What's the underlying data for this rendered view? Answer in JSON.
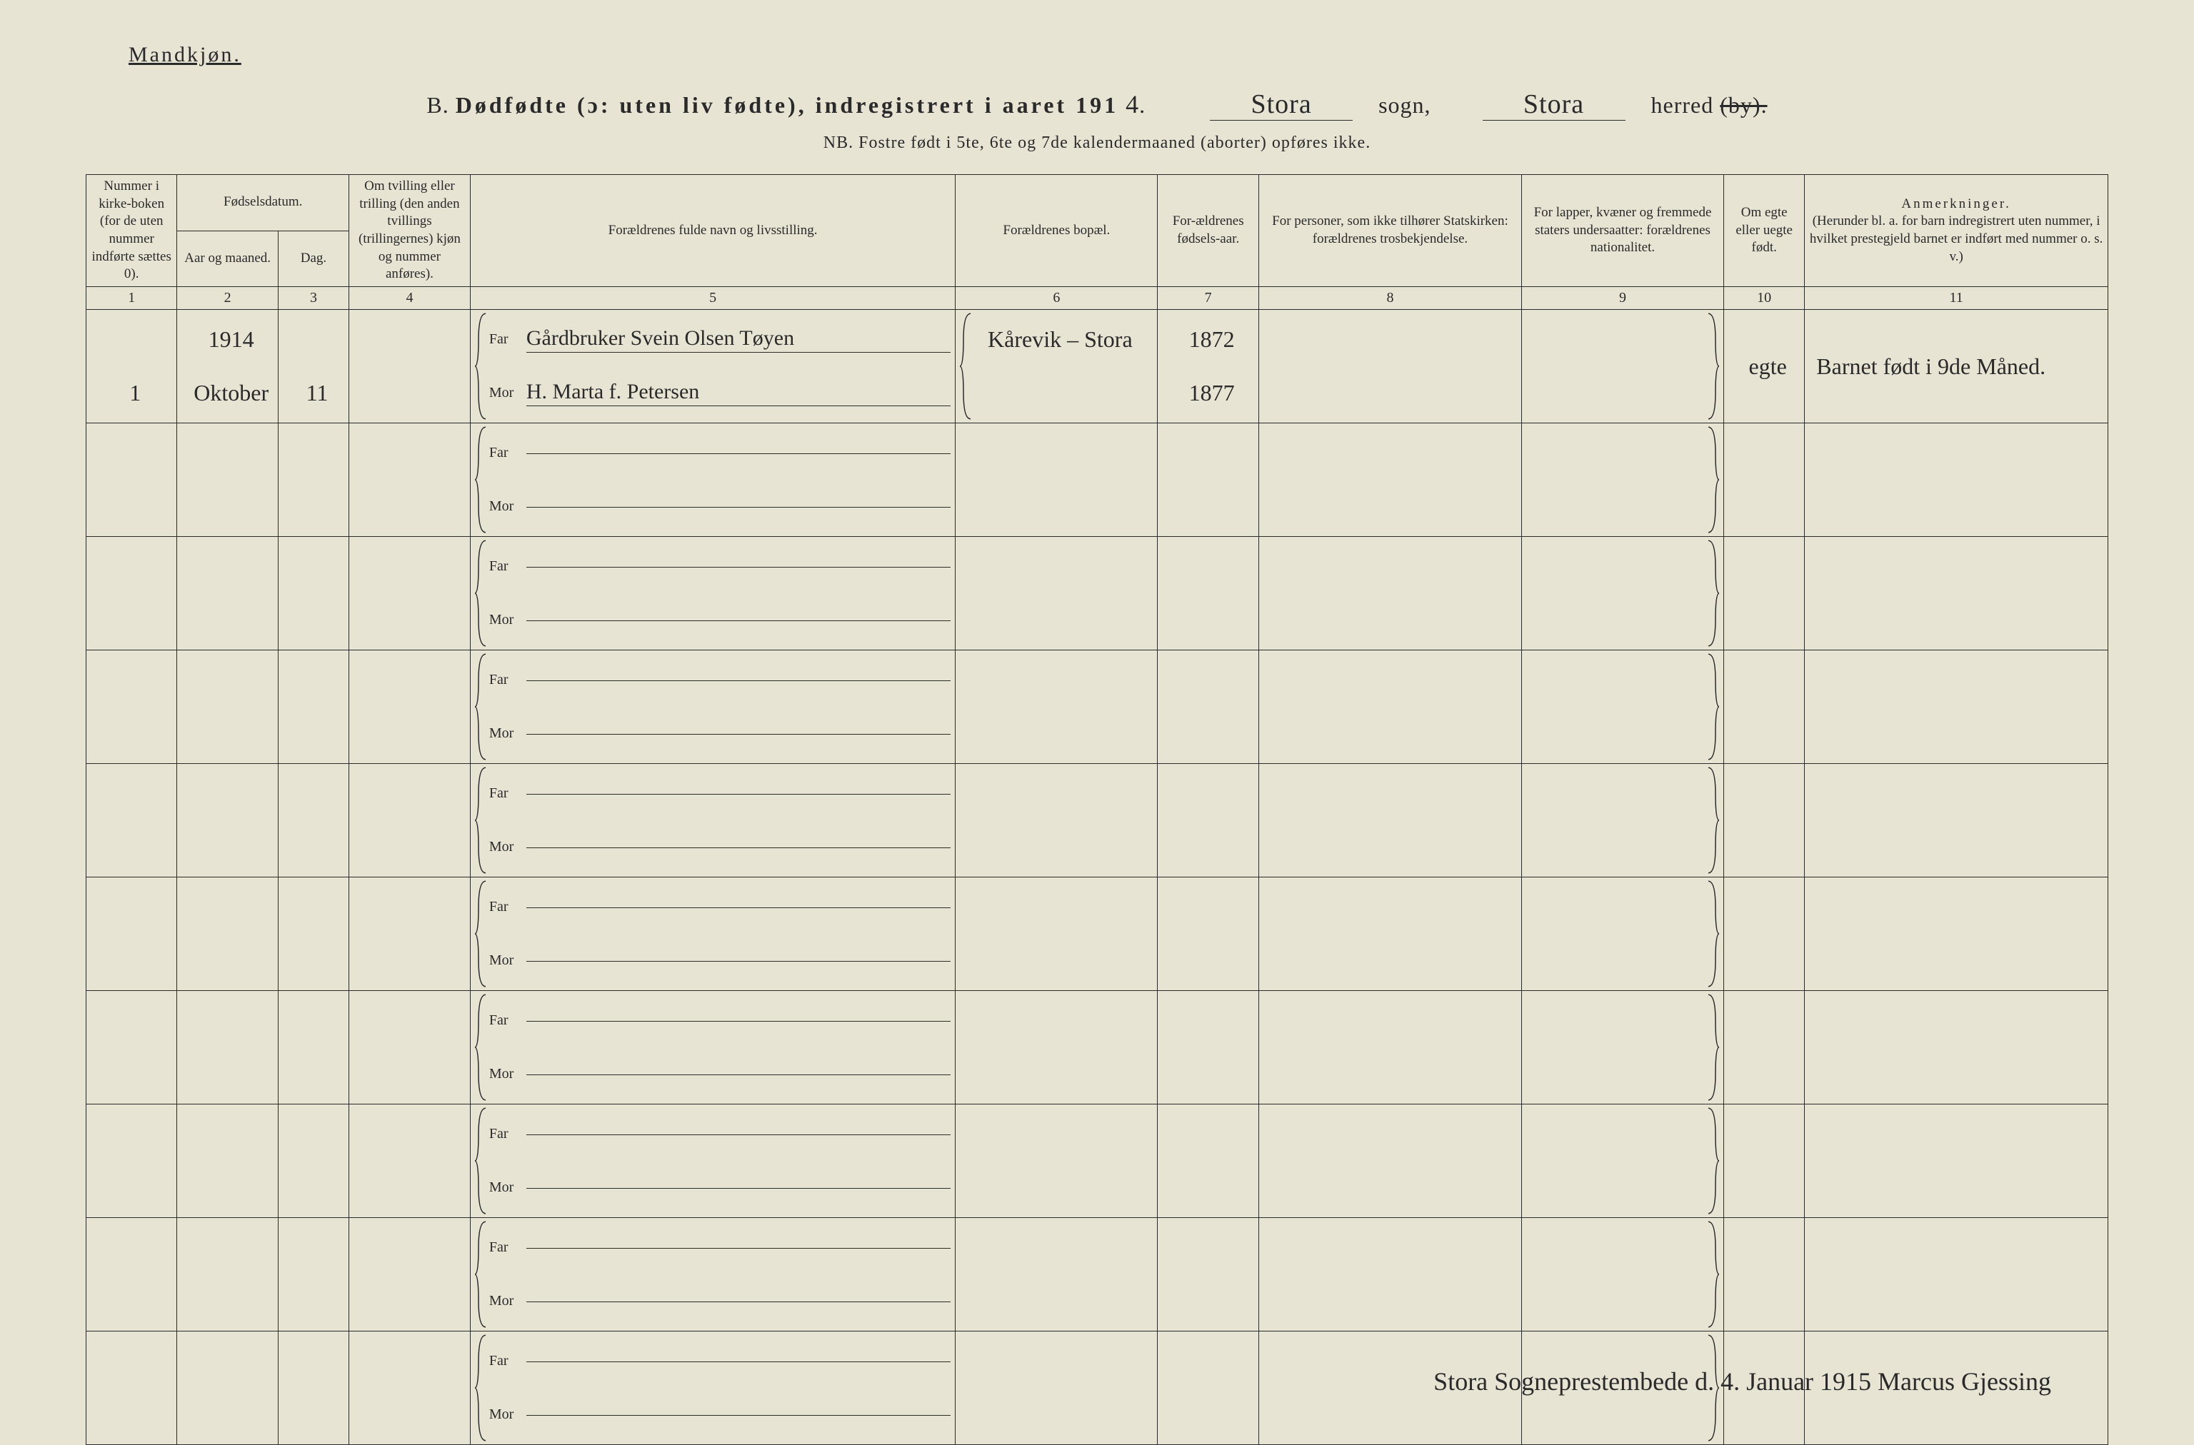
{
  "meta": {
    "gender_label": "Mandkjøn.",
    "section_letter": "B.",
    "title_main": "Dødfødte (ɔ: uten liv fødte), indregistrert i aaret 191",
    "year_suffix": "4",
    "sogn_label": "sogn,",
    "sogn_value": "Stora",
    "herred_label": "herred",
    "herred_value": "Stora",
    "herred_strike": "(by).",
    "nb_line": "NB. Fostre født i 5te, 6te og 7de kalendermaaned (aborter) opføres ikke."
  },
  "headers": {
    "col1": "Nummer i kirke-boken (for de uten nummer indførte sættes 0).",
    "col2_top": "Fødselsdatum.",
    "col2a": "Aar og maaned.",
    "col2b": "Dag.",
    "col4": "Om tvilling eller trilling (den anden tvillings (trillingernes) kjøn og nummer anføres).",
    "col5": "Forældrenes fulde navn og livsstilling.",
    "col6": "Forældrenes bopæl.",
    "col7": "For-ældrenes fødsels-aar.",
    "col8": "For personer, som ikke tilhører Statskirken: forældrenes trosbekjendelse.",
    "col9": "For lapper, kvæner og fremmede staters undersaatter: forældrenes nationalitet.",
    "col10": "Om egte eller uegte født.",
    "col11_top": "Anmerkninger.",
    "col11_sub": "(Herunder bl. a. for barn indregistrert uten nummer, i hvilket prestegjeld barnet er indført med nummer o. s. v.)"
  },
  "colnums": [
    "1",
    "2",
    "3",
    "4",
    "5",
    "6",
    "7",
    "8",
    "9",
    "10",
    "11"
  ],
  "far_label": "Far",
  "mor_label": "Mor",
  "entry": {
    "number": "1",
    "year": "1914",
    "month": "Oktober",
    "day": "11",
    "far_name": "Gårdbruker Svein Olsen Tøyen",
    "mor_name": "H. Marta f. Petersen",
    "bopael": "Kårevik – Stora",
    "far_year": "1872",
    "mor_year": "1877",
    "egte": "egte",
    "anm": "Barnet født i 9de Måned."
  },
  "footer_signature": "Stora Sogneprestembede d. 4. Januar 1915  Marcus Gjessing",
  "style": {
    "background_color": "#e8e4d4",
    "ink_color": "#2a2a2a",
    "border_color": "#2a2a2a",
    "header_fontsize": 19,
    "body_fontsize": 22,
    "handwritten_fontsize": 30
  },
  "col_widths_pct": [
    4.5,
    5,
    3.5,
    6,
    24,
    10,
    5,
    13,
    10,
    4,
    15
  ]
}
